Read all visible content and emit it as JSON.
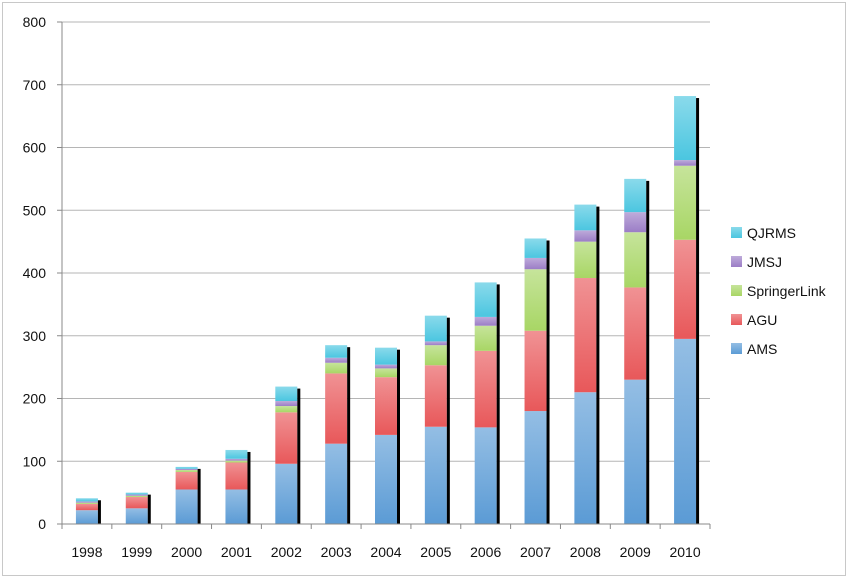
{
  "chart_data": {
    "type": "bar",
    "stacked": true,
    "categories": [
      "1998",
      "1999",
      "2000",
      "2001",
      "2002",
      "2003",
      "2004",
      "2005",
      "2006",
      "2007",
      "2008",
      "2009",
      "2010"
    ],
    "series": [
      {
        "name": "AMS",
        "color": "#5b9bd5",
        "values": [
          22,
          25,
          55,
          55,
          96,
          128,
          142,
          155,
          154,
          180,
          210,
          230,
          295
        ]
      },
      {
        "name": "AGU",
        "color": "#e8585a",
        "values": [
          10,
          18,
          28,
          43,
          82,
          112,
          92,
          98,
          122,
          128,
          182,
          147,
          158
        ]
      },
      {
        "name": "SpringerLink",
        "color": "#a8d665",
        "values": [
          2,
          2,
          3,
          3,
          10,
          17,
          14,
          32,
          40,
          98,
          58,
          88,
          118
        ]
      },
      {
        "name": "JMSJ",
        "color": "#9b7dc6",
        "values": [
          2,
          2,
          2,
          3,
          8,
          8,
          6,
          6,
          14,
          18,
          18,
          32,
          9
        ]
      },
      {
        "name": "QJRMS",
        "color": "#4bc6e0",
        "values": [
          5,
          3,
          3,
          14,
          23,
          20,
          27,
          41,
          55,
          31,
          41,
          53,
          102
        ]
      }
    ],
    "ylim": [
      0,
      800
    ],
    "yticks": [
      "0",
      "100",
      "200",
      "300",
      "400",
      "500",
      "600",
      "700",
      "800"
    ],
    "grid": true,
    "legend_position": "right"
  }
}
